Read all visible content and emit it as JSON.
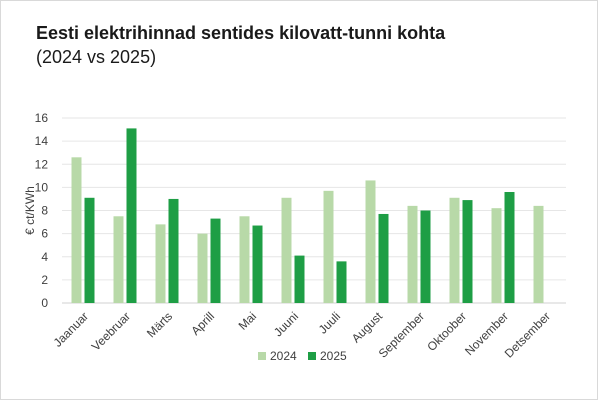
{
  "chart_data": {
    "type": "bar",
    "title": "Eesti elektrihinnad sentides kilovatt-tunni kohta",
    "subtitle": "(2024 vs 2025)",
    "xlabel": "",
    "ylabel": "€ ct/KWh",
    "ylim": [
      0,
      16
    ],
    "yticks": [
      0,
      2,
      4,
      6,
      8,
      10,
      12,
      14,
      16
    ],
    "grid": true,
    "legend_position": "bottom",
    "categories": [
      "Jaanuar",
      "Veebruar",
      "Märts",
      "Aprill",
      "Mai",
      "Juuni",
      "Juuli",
      "August",
      "September",
      "Oktoober",
      "November",
      "Detsember"
    ],
    "series": [
      {
        "name": "2024",
        "color": "#b8d9a8",
        "values": [
          12.6,
          7.5,
          6.8,
          6.0,
          7.5,
          9.1,
          9.7,
          10.6,
          8.4,
          9.1,
          8.2,
          8.4
        ]
      },
      {
        "name": "2025",
        "color": "#1e9e45",
        "values": [
          9.1,
          15.1,
          9.0,
          7.3,
          6.7,
          4.1,
          3.6,
          7.7,
          8.0,
          8.9,
          9.6,
          null
        ]
      }
    ]
  }
}
